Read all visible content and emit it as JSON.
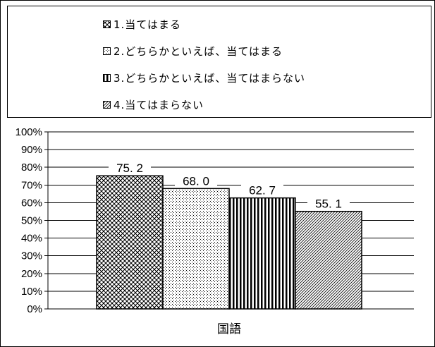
{
  "chart_data": {
    "type": "bar",
    "categories": [
      "国語"
    ],
    "series": [
      {
        "name": "1.当てはまる",
        "values": [
          75.2
        ],
        "value_label": "75. 2",
        "pattern": "pat-crosshatch"
      },
      {
        "name": "2.どちらかといえば、当てはまる",
        "values": [
          68.0
        ],
        "value_label": "68. 0",
        "pattern": "pat-dots"
      },
      {
        "name": "3.どちらかといえば、当てはまらない",
        "values": [
          62.7
        ],
        "value_label": "62. 7",
        "pattern": "pat-vertical"
      },
      {
        "name": "4.当てはまらない",
        "values": [
          55.1
        ],
        "value_label": "55. 1",
        "pattern": "pat-diagonal"
      }
    ],
    "ylim": [
      0,
      100
    ],
    "yticks": [
      "0%",
      "10%",
      "20%",
      "30%",
      "40%",
      "50%",
      "60%",
      "70%",
      "80%",
      "90%",
      "100%"
    ],
    "grid": true,
    "legend_position": "top",
    "xlabel": "",
    "ylabel": "",
    "title": ""
  }
}
